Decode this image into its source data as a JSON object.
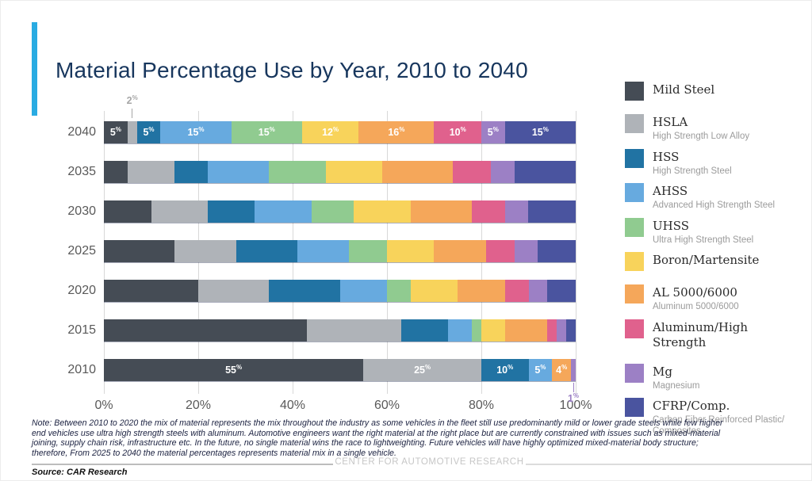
{
  "slide": {
    "title": "Material Percentage Use by Year, 2010 to 2040",
    "accent_color": "#29ABE2",
    "note": "Note: Between 2010 to 2020 the mix of material represents the mix throughout the industry as some vehicles in the fleet still use predominantly mild or lower grade steels while few higher end vehicles use ultra high strength steels with aluminum. Automotive engineers want the right material at the right place but are currently constrained with issues such as mixed-material joining, supply chain risk, infrastructure etc. In the future, no single material wins the race to lightweighting. Future vehicles will have highly optimized mixed-material body structure; therefore, From 2025 to 2040 the material percentages represents material mix in a single vehicle.",
    "source": "Source: CAR Research",
    "footer": "CENTER FOR AUTOMOTIVE RESEARCH"
  },
  "chart_data": {
    "type": "bar",
    "subtype": "horizontal-stacked",
    "unit": "%",
    "title": "Material Percentage Use by Year, 2010 to 2040",
    "categories": [
      "2040",
      "2035",
      "2030",
      "2025",
      "2020",
      "2015",
      "2010"
    ],
    "x_axis": {
      "min": 0,
      "max": 100,
      "ticks": [
        "0%",
        "20%",
        "40%",
        "60%",
        "80%",
        "100%"
      ],
      "grid": true
    },
    "label_rows": [
      "2040",
      "2010"
    ],
    "label_min_value": 3,
    "series": [
      {
        "name": "Mild Steel",
        "color": "#454C55",
        "values": [
          5,
          5,
          10,
          15,
          20,
          43,
          55
        ]
      },
      {
        "name": "HSLA",
        "color": "#AFB3B8",
        "values": [
          2,
          10,
          12,
          13,
          15,
          20,
          25
        ]
      },
      {
        "name": "HSS",
        "color": "#2173A3",
        "values": [
          5,
          7,
          10,
          13,
          15,
          10,
          10
        ]
      },
      {
        "name": "AHSS",
        "color": "#67AADF",
        "values": [
          15,
          13,
          12,
          11,
          10,
          5,
          5
        ]
      },
      {
        "name": "UHSS",
        "color": "#90CB90",
        "values": [
          15,
          12,
          9,
          8,
          5,
          2,
          0
        ]
      },
      {
        "name": "Boron/Martensite",
        "color": "#F8D35B",
        "values": [
          12,
          12,
          12,
          10,
          10,
          5,
          0
        ]
      },
      {
        "name": "AL 5000/6000",
        "color": "#F5A75A",
        "values": [
          16,
          15,
          13,
          11,
          10,
          9,
          4
        ]
      },
      {
        "name": "Aluminum/High Strength",
        "color": "#E0618D",
        "values": [
          10,
          8,
          7,
          6,
          5,
          2,
          0
        ]
      },
      {
        "name": "Mg",
        "color": "#9C80C5",
        "values": [
          5,
          5,
          5,
          5,
          4,
          2,
          1
        ]
      },
      {
        "name": "CFRP/Comp.",
        "color": "#4A549F",
        "values": [
          15,
          13,
          10,
          8,
          6,
          2,
          0
        ]
      }
    ],
    "callouts": [
      {
        "category": "2040",
        "series": "HSLA",
        "value_text": "2",
        "suffix": "%",
        "color": "#A6A6A6",
        "side": "above"
      },
      {
        "category": "2010",
        "series": "Mg",
        "value_text": "1",
        "suffix": "%",
        "color": "#9C80C5",
        "side": "below"
      }
    ],
    "legend_position": "right"
  },
  "legend": {
    "items": [
      {
        "label": "Mild Steel",
        "sub": "",
        "color": "#454C55"
      },
      {
        "label": "HSLA",
        "sub": "High Strength Low Alloy",
        "color": "#AFB3B8"
      },
      {
        "label": "HSS",
        "sub": "High Strength Steel",
        "color": "#2173A3"
      },
      {
        "label": "AHSS",
        "sub": "Advanced High Strength Steel",
        "color": "#67AADF"
      },
      {
        "label": "UHSS",
        "sub": "Ultra High Strength Steel",
        "color": "#90CB90"
      },
      {
        "label": "Boron/Martensite",
        "sub": "",
        "color": "#F8D35B"
      },
      {
        "label": "AL 5000/6000",
        "sub": "Aluminum 5000/6000",
        "color": "#F5A75A"
      },
      {
        "label": "Aluminum/High Strength",
        "sub": "",
        "color": "#E0618D"
      },
      {
        "label": "Mg",
        "sub": "Magnesium",
        "color": "#9C80C5"
      },
      {
        "label": "CFRP/Comp.",
        "sub": "Carbon Fiber Reinforced Plastic/ Composites",
        "color": "#4A549F"
      }
    ]
  }
}
